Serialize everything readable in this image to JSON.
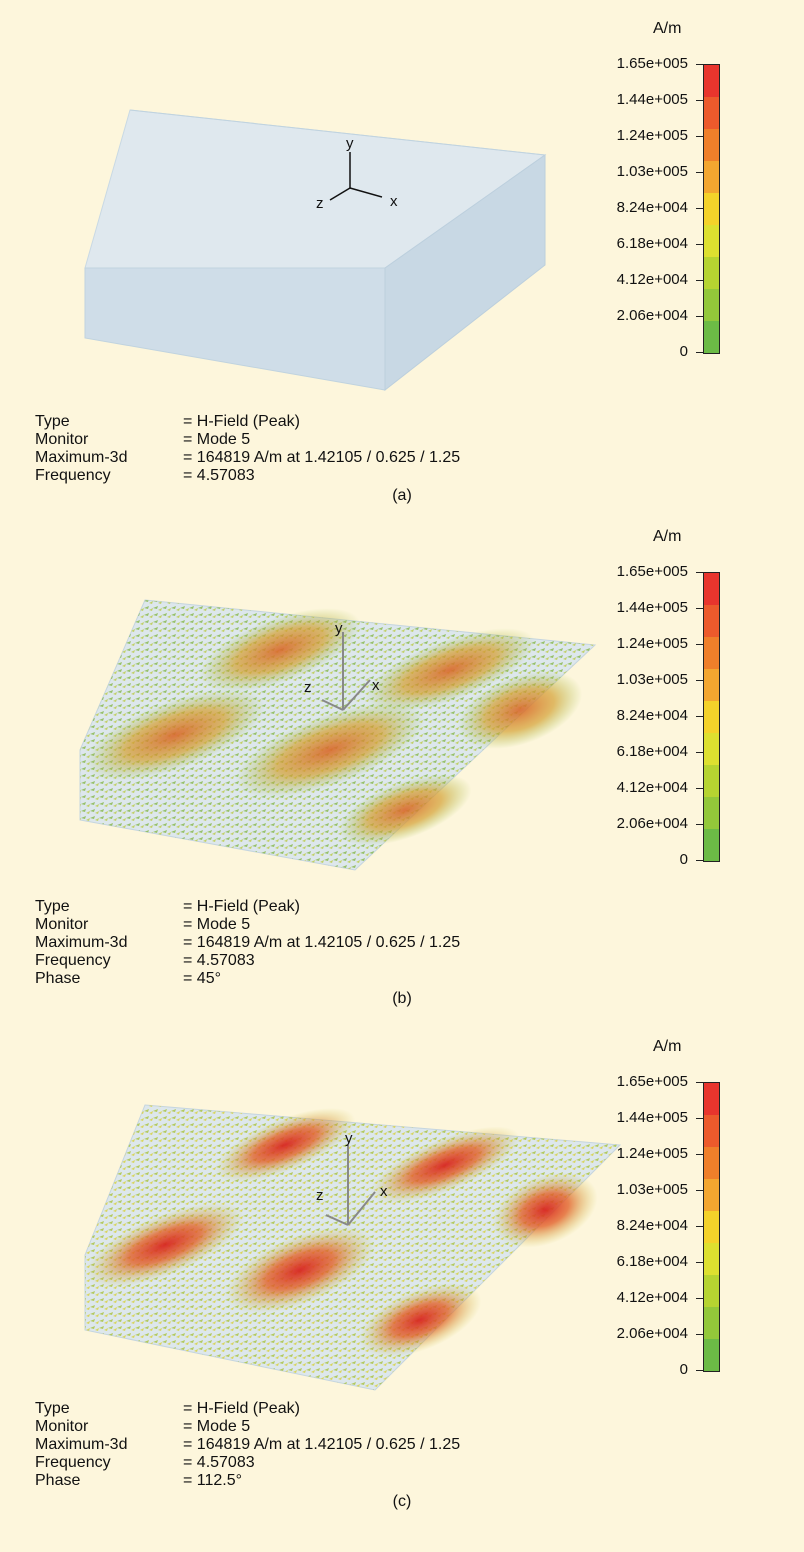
{
  "legend": {
    "unit": "A/m",
    "ticks": [
      "1.65e+005",
      "1.44e+005",
      "1.24e+005",
      "1.03e+005",
      "8.24e+004",
      "6.18e+004",
      "4.12e+004",
      "2.06e+004",
      "0"
    ],
    "colors": [
      "#e8352d",
      "#ec5a2c",
      "#ef7f2a",
      "#f3a630",
      "#f4d22a",
      "#dde030",
      "#b6d431",
      "#93c83a",
      "#6cbb46"
    ]
  },
  "panels": [
    {
      "id": "a",
      "caption": "(a)",
      "info": [
        {
          "key": "Type",
          "value": "= H-Field (Peak)"
        },
        {
          "key": "Monitor",
          "value": "= Mode 5"
        },
        {
          "key": "Maximum-3d",
          "value": "= 164819 A/m at 1.42105 / 0.625 / 1.25"
        },
        {
          "key": "Frequency",
          "value": "= 4.57083"
        }
      ]
    },
    {
      "id": "b",
      "caption": "(b)",
      "info": [
        {
          "key": "Type",
          "value": "= H-Field (Peak)"
        },
        {
          "key": "Monitor",
          "value": "= Mode 5"
        },
        {
          "key": "Maximum-3d",
          "value": "= 164819 A/m at 1.42105 / 0.625 / 1.25"
        },
        {
          "key": "Frequency",
          "value": "= 4.57083"
        },
        {
          "key": "Phase",
          "value": "= 45°"
        }
      ]
    },
    {
      "id": "c",
      "caption": "(c)",
      "info": [
        {
          "key": "Type",
          "value": "= H-Field (Peak)"
        },
        {
          "key": "Monitor",
          "value": "= Mode 5"
        },
        {
          "key": "Maximum-3d",
          "value": "= 164819 A/m at 1.42105 / 0.625 / 1.25"
        },
        {
          "key": "Frequency",
          "value": "= 4.57083"
        },
        {
          "key": "Phase",
          "value": "= 112.5°"
        }
      ]
    }
  ],
  "axes": {
    "x": "x",
    "y": "y",
    "z": "z"
  }
}
